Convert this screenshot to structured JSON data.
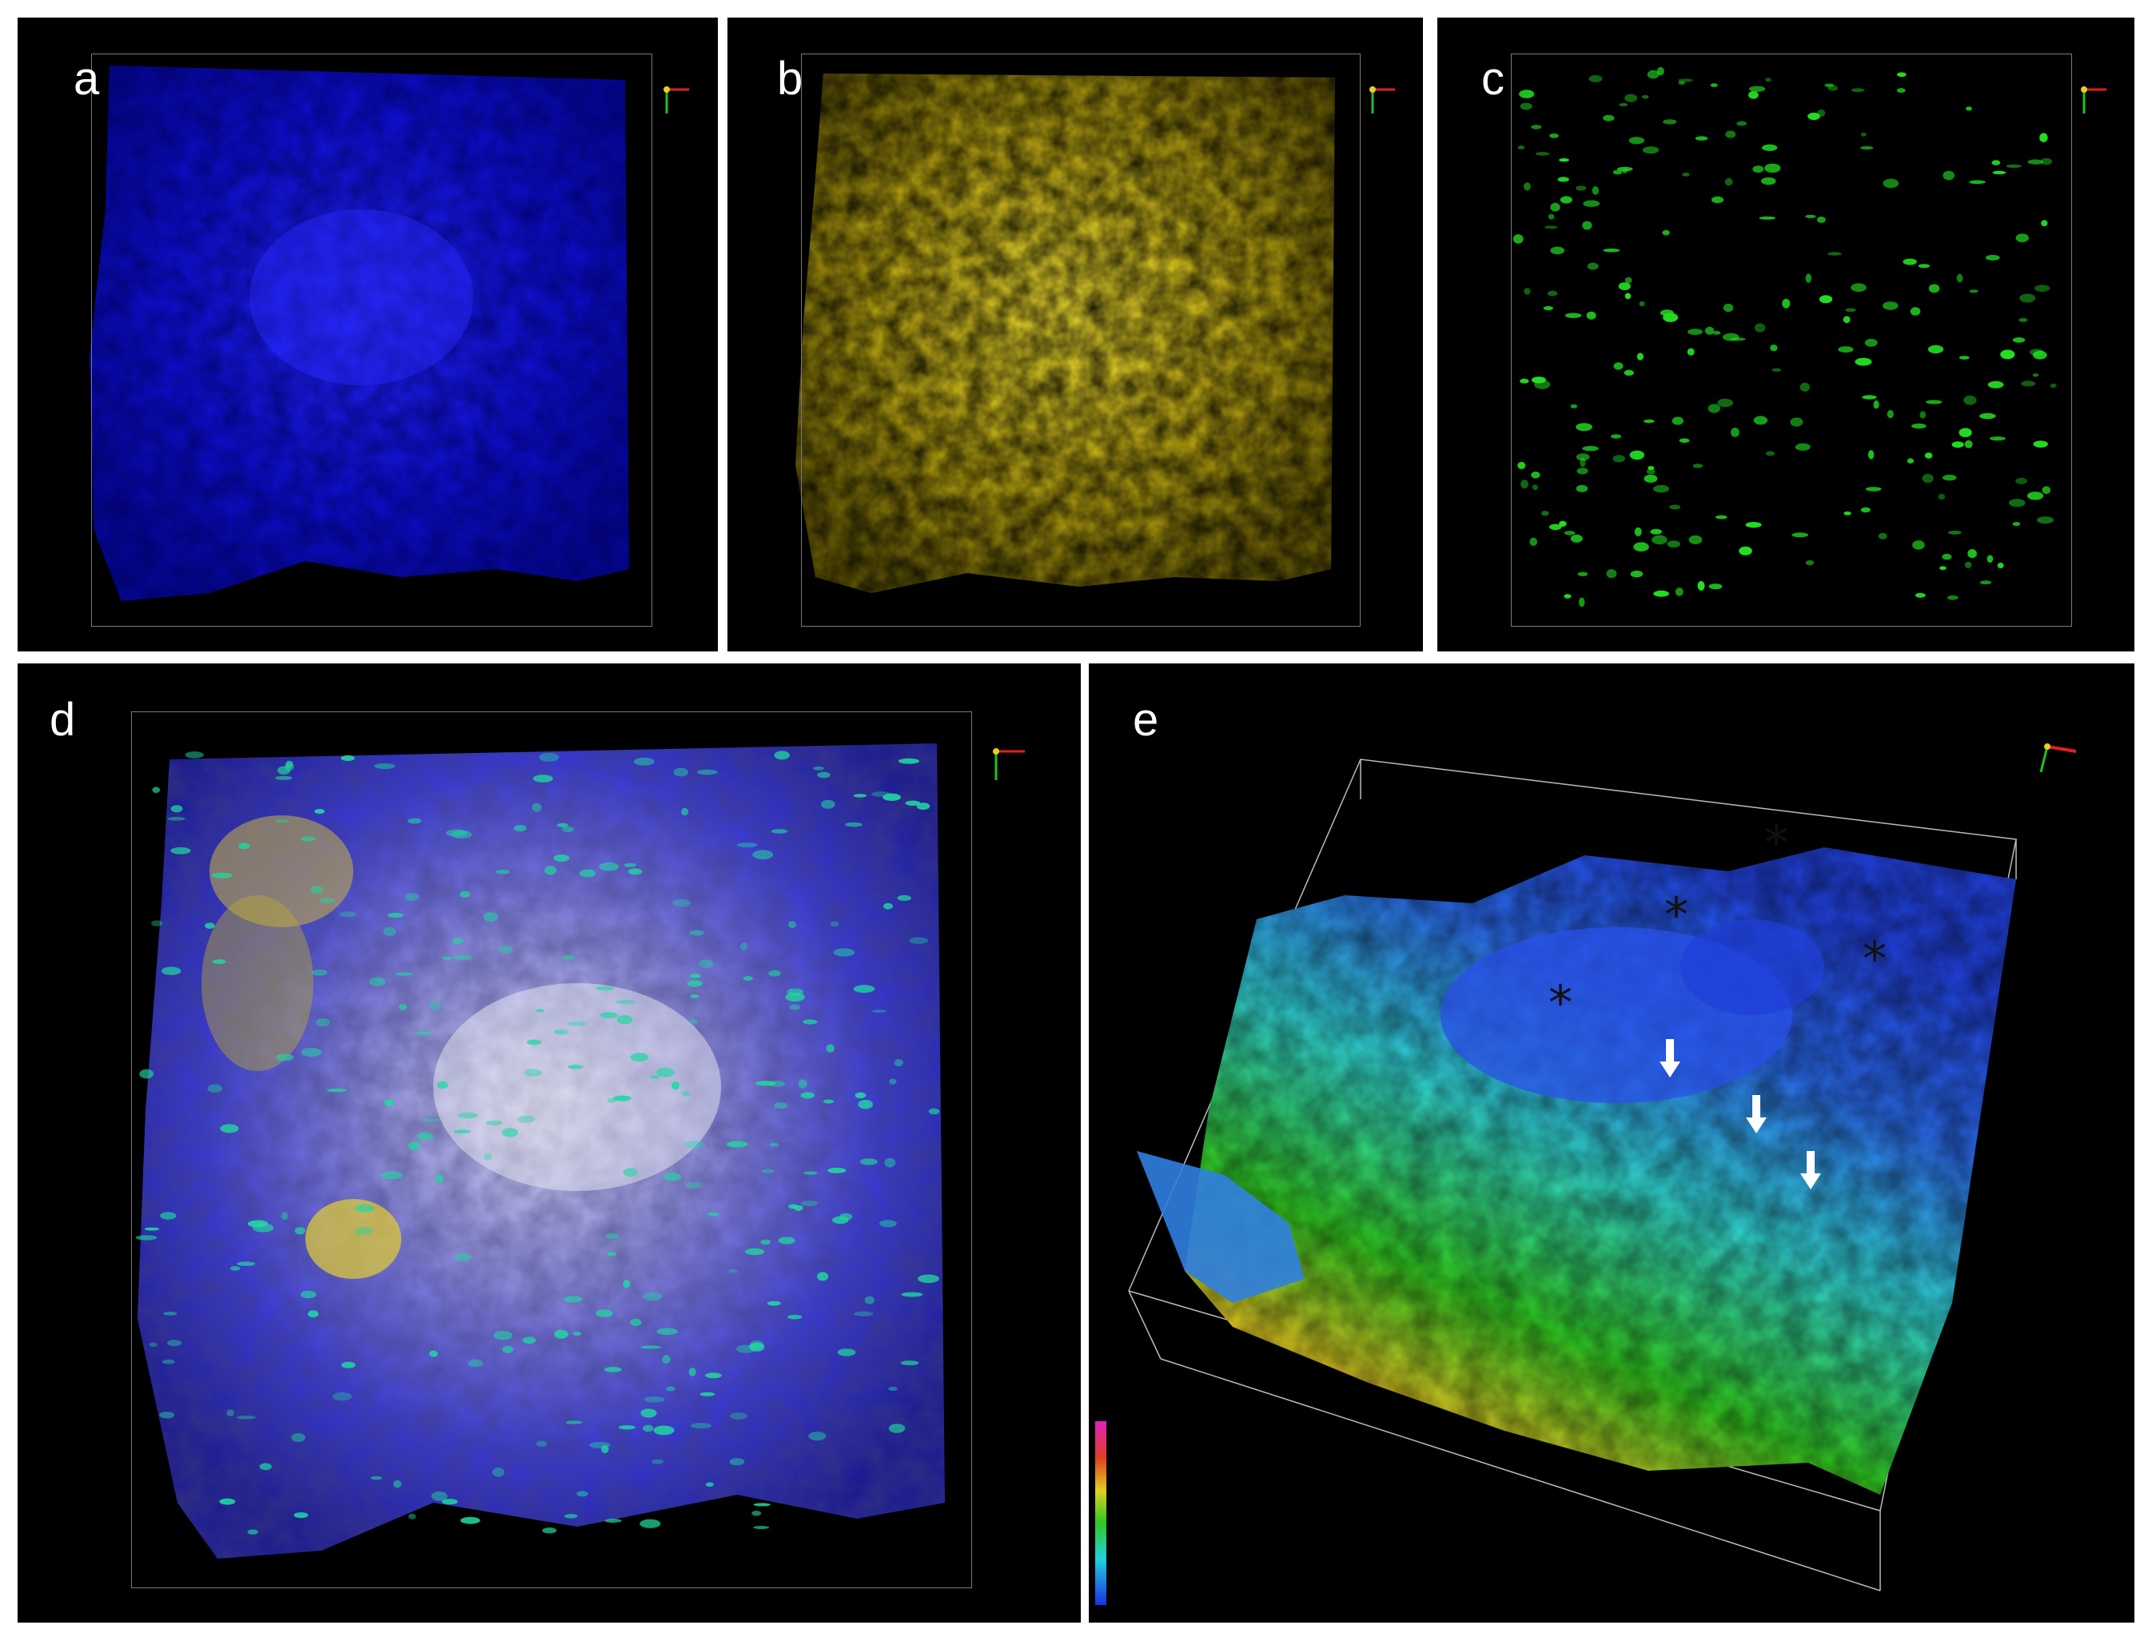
{
  "figure": {
    "panels": [
      {
        "id": "a",
        "label": "a",
        "channel_color": "#1a1aff"
      },
      {
        "id": "b",
        "label": "b",
        "channel_color": "#e6d21a"
      },
      {
        "id": "c",
        "label": "c",
        "channel_color": "#1ee61e"
      },
      {
        "id": "d",
        "label": "d",
        "channel_color": "#3a3aff"
      },
      {
        "id": "e",
        "label": "e",
        "channel_color": "#3cc8e6"
      }
    ],
    "markers": {
      "asterisk": "*"
    },
    "icons": {
      "axis": "xyz-axis-icon",
      "arrow": "down-arrow-icon"
    }
  }
}
